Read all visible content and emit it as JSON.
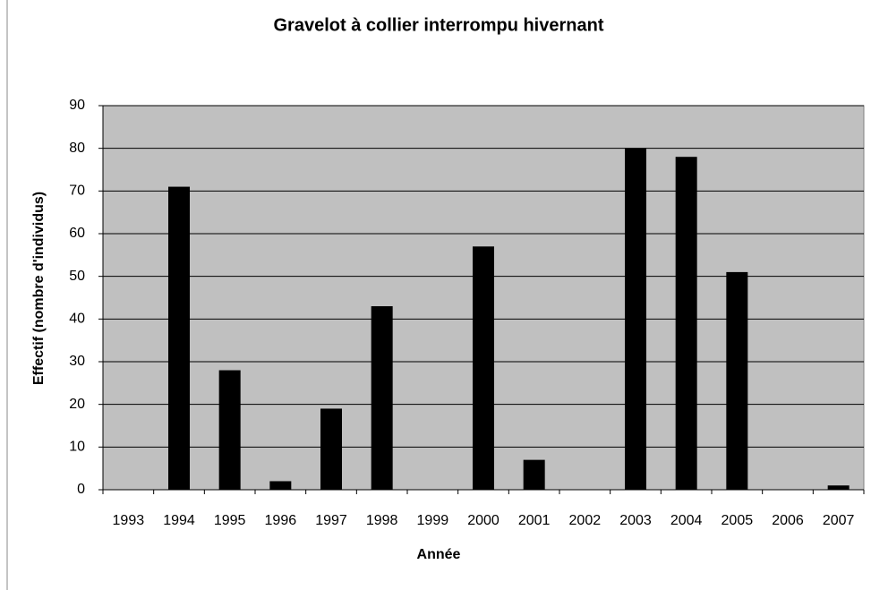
{
  "chart_data": {
    "type": "bar",
    "title": "Gravelot à collier interrompu hivernant",
    "x_label": "Année",
    "y_label": "Effectif (nombre d'individus)",
    "categories": [
      "1993",
      "1994",
      "1995",
      "1996",
      "1997",
      "1998",
      "1999",
      "2000",
      "2001",
      "2002",
      "2003",
      "2004",
      "2005",
      "2006",
      "2007"
    ],
    "values": [
      0,
      71,
      28,
      2,
      19,
      43,
      0,
      57,
      7,
      0,
      80,
      78,
      51,
      0,
      1
    ],
    "color": "#000000",
    "plot_background": "#c0c0c0",
    "ylim": [
      0,
      90
    ],
    "yticks": [
      0,
      10,
      20,
      30,
      40,
      50,
      60,
      70,
      80,
      90
    ],
    "grid": true
  }
}
